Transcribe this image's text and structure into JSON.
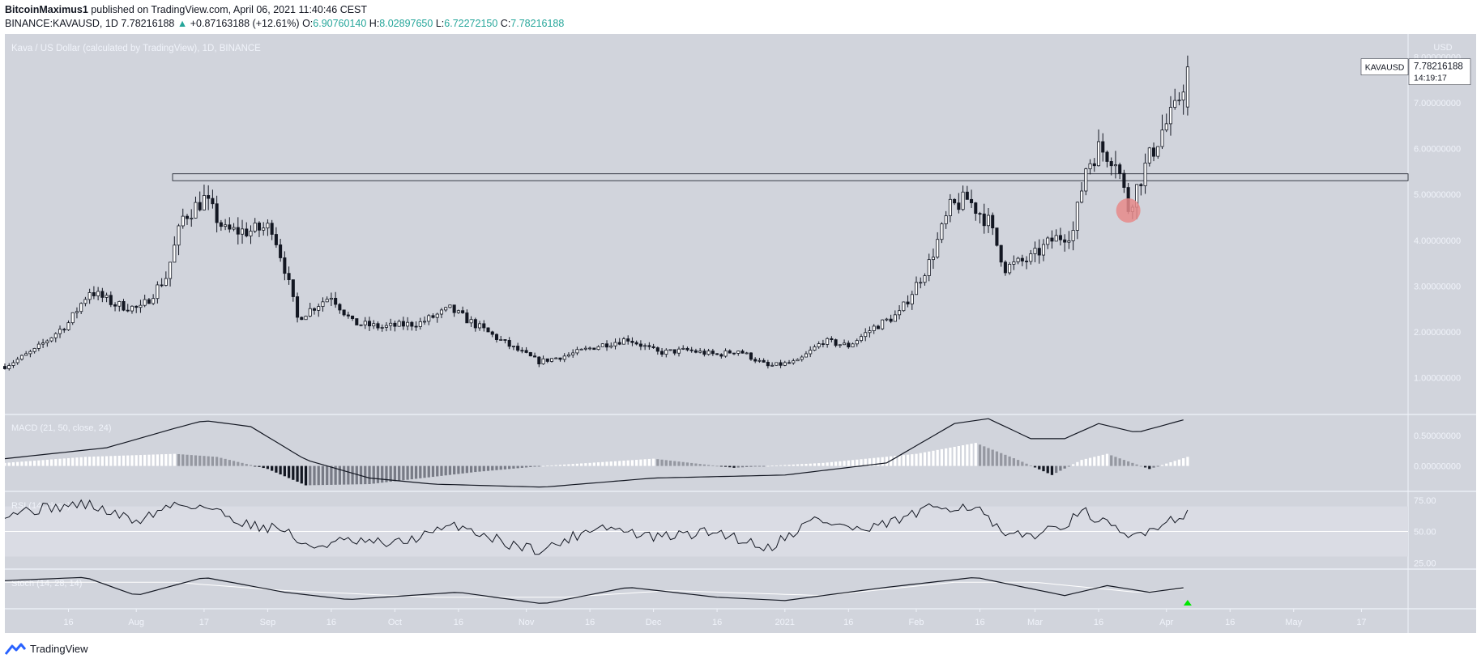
{
  "header": {
    "author": "BitcoinMaximus1",
    "published_text": "published on TradingView.com, April 06, 2021 11:40:46 CEST",
    "symbol": "BINANCE:KAVAUSD, 1D",
    "last": "7.78216188",
    "change": "+0.87163188 (+12.61%)",
    "o_label": "O:",
    "o": "6.90760140",
    "h_label": "H:",
    "h": "8.02897650",
    "l_label": "L:",
    "l": "6.72272150",
    "c_label": "C:",
    "c": "7.78216188"
  },
  "footer": {
    "brand": "TradingView"
  },
  "colors": {
    "pane_bg": "#d1d4dc",
    "rsi_band": "#dadce4",
    "candle": "#131722",
    "accent": "#26a69a",
    "circle": "#e88a8a",
    "arrow": "#00e600"
  },
  "chart_data": {
    "type": "candlestick",
    "title": "Kava / US Dollar (calculated by TradingView), 1D, BINANCE",
    "currency": "USD",
    "ticker_label": "KAVAUSD",
    "last_price": "7.78216188",
    "countdown": "14:19:17",
    "ylim": [
      0.2,
      8.5
    ],
    "y_ticks": [
      "8.00000000",
      "7.00000000",
      "6.00000000",
      "5.00000000",
      "4.00000000",
      "3.00000000",
      "2.00000000",
      "1.00000000"
    ],
    "y_tick_values": [
      8,
      7,
      6,
      5,
      4,
      3,
      2,
      1
    ],
    "x_ticks": [
      "16",
      "Aug",
      "17",
      "Sep",
      "16",
      "Oct",
      "16",
      "Nov",
      "16",
      "Dec",
      "16",
      "2021",
      "16",
      "Feb",
      "16",
      "Mar",
      "16",
      "Apr",
      "16",
      "May",
      "17"
    ],
    "resistance_zone": [
      5.3,
      5.45
    ],
    "highlight": {
      "date": "2021-03-23",
      "price": 4.65
    },
    "price_path": [
      {
        "date": "2020-07-01",
        "price": 1.25
      },
      {
        "date": "2020-07-08",
        "price": 1.6
      },
      {
        "date": "2020-07-16",
        "price": 2.2
      },
      {
        "date": "2020-07-21",
        "price": 2.9
      },
      {
        "date": "2020-07-27",
        "price": 2.6
      },
      {
        "date": "2020-08-02",
        "price": 2.5
      },
      {
        "date": "2020-08-08",
        "price": 3.2
      },
      {
        "date": "2020-08-12",
        "price": 4.5
      },
      {
        "date": "2020-08-17",
        "price": 4.9
      },
      {
        "date": "2020-08-22",
        "price": 4.2
      },
      {
        "date": "2020-08-28",
        "price": 4.2
      },
      {
        "date": "2020-09-02",
        "price": 4.3
      },
      {
        "date": "2020-09-05",
        "price": 3.4
      },
      {
        "date": "2020-09-08",
        "price": 2.3
      },
      {
        "date": "2020-09-16",
        "price": 2.8
      },
      {
        "date": "2020-09-21",
        "price": 2.2
      },
      {
        "date": "2020-09-28",
        "price": 2.1
      },
      {
        "date": "2020-10-07",
        "price": 2.2
      },
      {
        "date": "2020-10-14",
        "price": 2.5
      },
      {
        "date": "2020-10-21",
        "price": 2.1
      },
      {
        "date": "2020-10-28",
        "price": 1.7
      },
      {
        "date": "2020-11-04",
        "price": 1.35
      },
      {
        "date": "2020-11-11",
        "price": 1.5
      },
      {
        "date": "2020-11-18",
        "price": 1.7
      },
      {
        "date": "2020-11-25",
        "price": 1.85
      },
      {
        "date": "2020-12-02",
        "price": 1.55
      },
      {
        "date": "2020-12-09",
        "price": 1.6
      },
      {
        "date": "2020-12-16",
        "price": 1.5
      },
      {
        "date": "2020-12-21",
        "price": 1.6
      },
      {
        "date": "2020-12-28",
        "price": 1.25
      },
      {
        "date": "2021-01-04",
        "price": 1.35
      },
      {
        "date": "2021-01-10",
        "price": 1.8
      },
      {
        "date": "2021-01-16",
        "price": 1.7
      },
      {
        "date": "2021-01-22",
        "price": 2.1
      },
      {
        "date": "2021-01-28",
        "price": 2.4
      },
      {
        "date": "2021-02-04",
        "price": 3.5
      },
      {
        "date": "2021-02-09",
        "price": 4.7
      },
      {
        "date": "2021-02-13",
        "price": 4.9
      },
      {
        "date": "2021-02-18",
        "price": 4.4
      },
      {
        "date": "2021-02-22",
        "price": 3.4
      },
      {
        "date": "2021-02-28",
        "price": 3.6
      },
      {
        "date": "2021-03-05",
        "price": 4.0
      },
      {
        "date": "2021-03-10",
        "price": 4.2
      },
      {
        "date": "2021-03-13",
        "price": 5.6
      },
      {
        "date": "2021-03-16",
        "price": 6.0
      },
      {
        "date": "2021-03-20",
        "price": 5.8
      },
      {
        "date": "2021-03-23",
        "price": 4.7
      },
      {
        "date": "2021-03-27",
        "price": 5.6
      },
      {
        "date": "2021-03-31",
        "price": 6.4
      },
      {
        "date": "2021-04-03",
        "price": 6.8
      },
      {
        "date": "2021-04-06",
        "price": 7.78
      }
    ],
    "indicators": {
      "macd": {
        "label": "MACD (21, 50, close, 24)",
        "y_ticks": [
          "0.50000000",
          "0.00000000"
        ],
        "y_tick_values": [
          0.5,
          0.0
        ],
        "ylim": [
          -0.42,
          0.85
        ],
        "line": [
          {
            "date": "2020-07-01",
            "value": 0.12
          },
          {
            "date": "2020-07-25",
            "value": 0.3
          },
          {
            "date": "2020-08-10",
            "value": 0.62
          },
          {
            "date": "2020-08-17",
            "value": 0.75
          },
          {
            "date": "2020-08-28",
            "value": 0.65
          },
          {
            "date": "2020-09-10",
            "value": 0.1
          },
          {
            "date": "2020-09-25",
            "value": -0.2
          },
          {
            "date": "2020-10-10",
            "value": -0.3
          },
          {
            "date": "2020-11-05",
            "value": -0.35
          },
          {
            "date": "2020-12-01",
            "value": -0.2
          },
          {
            "date": "2021-01-01",
            "value": -0.15
          },
          {
            "date": "2021-01-25",
            "value": 0.05
          },
          {
            "date": "2021-02-10",
            "value": 0.7
          },
          {
            "date": "2021-02-18",
            "value": 0.78
          },
          {
            "date": "2021-02-28",
            "value": 0.45
          },
          {
            "date": "2021-03-08",
            "value": 0.45
          },
          {
            "date": "2021-03-16",
            "value": 0.7
          },
          {
            "date": "2021-03-25",
            "value": 0.55
          },
          {
            "date": "2021-04-06",
            "value": 0.78
          }
        ],
        "histogram": [
          {
            "date": "2020-07-01",
            "value": 0.05
          },
          {
            "date": "2020-07-20",
            "value": 0.15
          },
          {
            "date": "2020-08-10",
            "value": 0.2
          },
          {
            "date": "2020-08-20",
            "value": 0.15
          },
          {
            "date": "2020-09-01",
            "value": -0.05
          },
          {
            "date": "2020-09-10",
            "value": -0.32
          },
          {
            "date": "2020-09-25",
            "value": -0.3
          },
          {
            "date": "2020-10-20",
            "value": -0.1
          },
          {
            "date": "2020-11-05",
            "value": 0.0
          },
          {
            "date": "2020-12-01",
            "value": 0.12
          },
          {
            "date": "2020-12-20",
            "value": -0.03
          },
          {
            "date": "2021-01-10",
            "value": 0.05
          },
          {
            "date": "2021-02-01",
            "value": 0.2
          },
          {
            "date": "2021-02-15",
            "value": 0.38
          },
          {
            "date": "2021-02-25",
            "value": 0.1
          },
          {
            "date": "2021-03-05",
            "value": -0.15
          },
          {
            "date": "2021-03-12",
            "value": 0.1
          },
          {
            "date": "2021-03-18",
            "value": 0.2
          },
          {
            "date": "2021-03-28",
            "value": -0.05
          },
          {
            "date": "2021-04-06",
            "value": 0.15
          }
        ]
      },
      "rsi": {
        "label": "RSI (14, close)",
        "y_ticks": [
          "75.00",
          "50.00",
          "25.00"
        ],
        "y_tick_values": [
          75,
          50,
          25
        ],
        "ylim": [
          20,
          82
        ],
        "band": [
          30,
          70
        ],
        "line": [
          {
            "date": "2020-07-01",
            "value": 65
          },
          {
            "date": "2020-07-20",
            "value": 72
          },
          {
            "date": "2020-08-01",
            "value": 58
          },
          {
            "date": "2020-08-10",
            "value": 72
          },
          {
            "date": "2020-08-17",
            "value": 70
          },
          {
            "date": "2020-08-28",
            "value": 55
          },
          {
            "date": "2020-09-05",
            "value": 52
          },
          {
            "date": "2020-09-10",
            "value": 37
          },
          {
            "date": "2020-09-18",
            "value": 42
          },
          {
            "date": "2020-10-01",
            "value": 40
          },
          {
            "date": "2020-10-16",
            "value": 55
          },
          {
            "date": "2020-10-28",
            "value": 40
          },
          {
            "date": "2020-11-05",
            "value": 35
          },
          {
            "date": "2020-11-18",
            "value": 55
          },
          {
            "date": "2020-12-01",
            "value": 45
          },
          {
            "date": "2020-12-16",
            "value": 50
          },
          {
            "date": "2020-12-28",
            "value": 37
          },
          {
            "date": "2021-01-08",
            "value": 60
          },
          {
            "date": "2021-01-20",
            "value": 50
          },
          {
            "date": "2021-02-06",
            "value": 70
          },
          {
            "date": "2021-02-15",
            "value": 70
          },
          {
            "date": "2021-02-22",
            "value": 45
          },
          {
            "date": "2021-03-04",
            "value": 50
          },
          {
            "date": "2021-03-13",
            "value": 65
          },
          {
            "date": "2021-03-23",
            "value": 45
          },
          {
            "date": "2021-04-06",
            "value": 65
          }
        ]
      },
      "stoch": {
        "label": "Stoch (14, 28, 14)",
        "y_tick_values": [
          80,
          20
        ],
        "ylim": [
          0,
          100
        ],
        "k_line": [
          {
            "date": "2020-07-01",
            "value": 75
          },
          {
            "date": "2020-07-20",
            "value": 85
          },
          {
            "date": "2020-08-01",
            "value": 30
          },
          {
            "date": "2020-08-17",
            "value": 85
          },
          {
            "date": "2020-09-05",
            "value": 40
          },
          {
            "date": "2020-09-20",
            "value": 18
          },
          {
            "date": "2020-10-16",
            "value": 40
          },
          {
            "date": "2020-11-05",
            "value": 5
          },
          {
            "date": "2020-11-25",
            "value": 55
          },
          {
            "date": "2020-12-16",
            "value": 25
          },
          {
            "date": "2021-01-01",
            "value": 15
          },
          {
            "date": "2021-01-25",
            "value": 55
          },
          {
            "date": "2021-02-15",
            "value": 85
          },
          {
            "date": "2021-03-08",
            "value": 30
          },
          {
            "date": "2021-03-18",
            "value": 60
          },
          {
            "date": "2021-03-28",
            "value": 40
          },
          {
            "date": "2021-04-06",
            "value": 55
          }
        ],
        "d_line": [
          {
            "date": "2020-07-01",
            "value": 70
          },
          {
            "date": "2020-08-10",
            "value": 70
          },
          {
            "date": "2020-09-05",
            "value": 45
          },
          {
            "date": "2020-10-10",
            "value": 25
          },
          {
            "date": "2020-11-10",
            "value": 25
          },
          {
            "date": "2020-12-05",
            "value": 45
          },
          {
            "date": "2021-01-10",
            "value": 30
          },
          {
            "date": "2021-02-10",
            "value": 70
          },
          {
            "date": "2021-03-01",
            "value": 70
          },
          {
            "date": "2021-03-25",
            "value": 40
          },
          {
            "date": "2021-04-06",
            "value": 50
          }
        ],
        "signal_arrow_date": "2021-04-06"
      }
    }
  }
}
